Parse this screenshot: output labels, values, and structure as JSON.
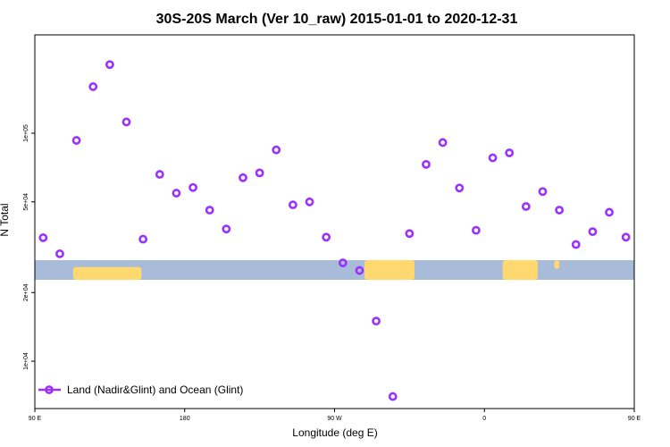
{
  "chart_data": {
    "type": "scatter",
    "title": "30S-20S March (Ver 10_raw)   2015-01-01 to 2020-12-31",
    "xlabel": "Longitude (deg E)",
    "ylabel": "N Total",
    "xlim": [
      90,
      450
    ],
    "ylim": [
      6200,
      270000
    ],
    "y_scale": "log",
    "x_ticks": [
      {
        "value": 90,
        "label": "90 E"
      },
      {
        "value": 180,
        "label": "180"
      },
      {
        "value": 270,
        "label": "90 W"
      },
      {
        "value": 360,
        "label": "0"
      },
      {
        "value": 450,
        "label": "90 E"
      }
    ],
    "y_ticks": [
      {
        "value": 10000,
        "label": "1e+04"
      },
      {
        "value": 20000,
        "label": "2e+04"
      },
      {
        "value": 50000,
        "label": "5e+04"
      },
      {
        "value": 100000,
        "label": "1e+05"
      }
    ],
    "legend": {
      "position": "bottom-left",
      "entries": [
        "Land (Nadir&Glint) and Ocean (Glint)"
      ]
    },
    "series_color": "#9b30ff",
    "land_color": "#ffd870",
    "ocean_color": "#a8bcd9",
    "series": [
      {
        "x": [
          95,
          105,
          115,
          125,
          135,
          145,
          155,
          165,
          175,
          185,
          195,
          205,
          215,
          225,
          235,
          245,
          255,
          265,
          275,
          285,
          295,
          305,
          315,
          325,
          335,
          345,
          355,
          365,
          375,
          385,
          395,
          405,
          415,
          425,
          435,
          445
        ],
        "y": [
          34800,
          29600,
          93000,
          160000,
          200000,
          112000,
          34300,
          66000,
          54600,
          57800,
          46000,
          38000,
          63800,
          67000,
          84500,
          48500,
          50000,
          35000,
          27000,
          25000,
          15000,
          7000,
          36300,
          73000,
          91000,
          57500,
          37500,
          78000,
          82000,
          47700,
          55500,
          46000,
          32500,
          37000,
          45000,
          35000
        ]
      }
    ]
  }
}
